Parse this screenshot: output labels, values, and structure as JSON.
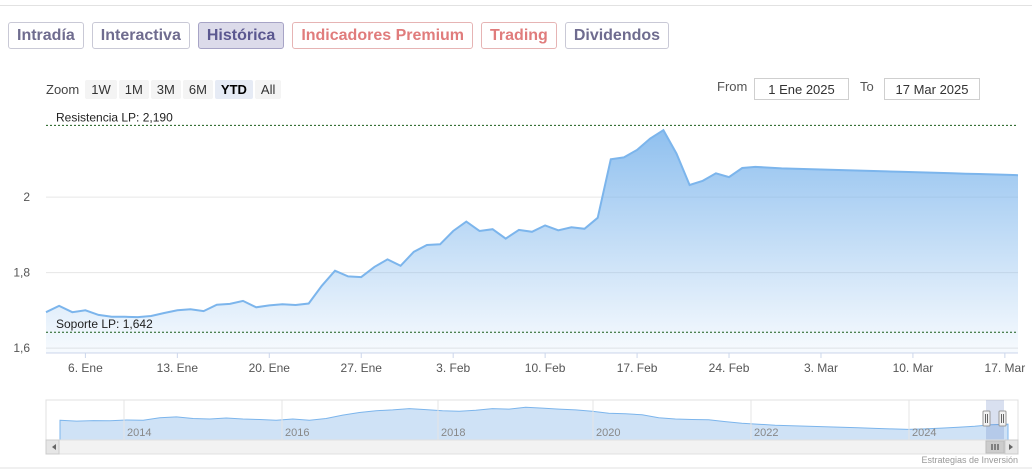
{
  "tabs": [
    {
      "label": "Intradía",
      "state": "normal"
    },
    {
      "label": "Interactiva",
      "state": "normal"
    },
    {
      "label": "Histórica",
      "state": "active"
    },
    {
      "label": "Indicadores Premium",
      "state": "premium"
    },
    {
      "label": "Trading",
      "state": "premium"
    },
    {
      "label": "Dividendos",
      "state": "normal"
    }
  ],
  "zoom": {
    "label": "Zoom",
    "buttons": [
      "1W",
      "1M",
      "3M",
      "6M",
      "YTD",
      "All"
    ],
    "selected": "YTD"
  },
  "range": {
    "from_label": "From",
    "from_value": "1 Ene 2025",
    "to_label": "To",
    "to_value": "17 Mar 2025"
  },
  "colors": {
    "line": "#7cb5ec",
    "tab_text": "#6f6c8f",
    "premium_text": "#e07c7c"
  },
  "chart_data": {
    "type": "area",
    "y_ticks": [
      "1,6",
      "1,8",
      "2"
    ],
    "y_tick_values": [
      1.6,
      1.8,
      2.0
    ],
    "ylim": [
      1.587,
      2.22
    ],
    "x_ticks": [
      "6. Ene",
      "13. Ene",
      "20. Ene",
      "27. Ene",
      "3. Feb",
      "10. Feb",
      "17. Feb",
      "24. Feb",
      "3. Mar",
      "10. Mar",
      "17. Mar"
    ],
    "x_tick_days": [
      5,
      12,
      19,
      26,
      33,
      40,
      47,
      54,
      61,
      68,
      75
    ],
    "x_range_days": [
      2,
      76
    ],
    "series": [
      {
        "x_days": [
          2,
          3,
          4,
          5,
          6,
          7,
          8,
          9,
          10,
          11,
          12,
          13,
          14,
          15,
          16,
          17,
          18,
          19,
          20,
          21,
          22,
          23,
          24,
          25,
          26,
          27,
          28,
          29,
          30,
          31,
          32,
          33,
          34,
          35,
          36,
          37,
          38,
          39,
          40,
          41,
          42,
          43,
          44,
          45,
          46,
          47,
          48,
          49,
          50,
          51,
          52,
          53,
          54,
          55,
          56,
          57,
          58,
          59,
          60,
          61,
          62,
          63,
          64,
          65,
          66,
          67,
          68,
          69,
          70,
          71,
          72,
          73,
          74,
          75,
          76
        ],
        "values": [
          1.695,
          1.712,
          1.695,
          1.7,
          1.688,
          1.683,
          1.683,
          1.682,
          1.685,
          1.693,
          1.7,
          1.703,
          1.698,
          1.715,
          1.717,
          1.725,
          1.708,
          1.713,
          1.716,
          1.714,
          1.718,
          1.765,
          1.805,
          1.79,
          1.788,
          1.815,
          1.835,
          1.818,
          1.855,
          1.873,
          1.875,
          1.91,
          1.935,
          1.91,
          1.915,
          1.89,
          1.913,
          1.908,
          1.925,
          1.912,
          1.92,
          1.916,
          1.945,
          2.1,
          2.105,
          2.125,
          2.155,
          2.177,
          2.115,
          2.032,
          2.043,
          2.063,
          2.053,
          2.077,
          2.08,
          2.078,
          2.076,
          2.075,
          2.074,
          2.073,
          2.072,
          2.071,
          2.07,
          2.069,
          2.068,
          2.067,
          2.066,
          2.065,
          2.064,
          2.063,
          2.062,
          2.061,
          2.06,
          2.059,
          2.058
        ]
      }
    ],
    "plot_lines": [
      {
        "label": "Resistencia LP: 2,190",
        "value": 2.19
      },
      {
        "label": "Soporte LP: 1,642",
        "value": 1.642
      }
    ],
    "navigator": {
      "x_labels": [
        "2014",
        "2016",
        "2018",
        "2020",
        "2022",
        "2024"
      ],
      "profile": [
        0.45,
        0.42,
        0.44,
        0.43,
        0.46,
        0.45,
        0.55,
        0.58,
        0.52,
        0.5,
        0.54,
        0.5,
        0.48,
        0.45,
        0.5,
        0.45,
        0.52,
        0.65,
        0.75,
        0.82,
        0.85,
        0.9,
        0.86,
        0.82,
        0.8,
        0.84,
        0.9,
        0.88,
        0.95,
        0.92,
        0.88,
        0.85,
        0.8,
        0.72,
        0.7,
        0.66,
        0.55,
        0.5,
        0.48,
        0.47,
        0.4,
        0.34,
        0.3,
        0.26,
        0.24,
        0.22,
        0.2,
        0.18,
        0.16,
        0.14,
        0.12,
        0.1,
        0.12,
        0.15,
        0.18,
        0.22,
        0.28,
        0.3
      ]
    },
    "credit": "Estrategias de Inversión"
  }
}
